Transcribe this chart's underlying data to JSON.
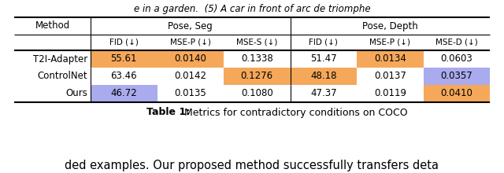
{
  "subtitle_top": "e in a garden.  (5) A car in front of arc de triomphe",
  "subtitle_bottom": "ded examples. Our proposed method successfully transfers deta",
  "title_bold": "Table 1:",
  "title_normal": " Metrics for contradictory conditions on COCO",
  "group_labels": [
    "Pose, Seg",
    "Pose, Depth"
  ],
  "col_labels": [
    "FID (↓)",
    "MSE-P (↓)",
    "MSE-S (↓)",
    "FID (↓)",
    "MSE-P (↓)",
    "MSE-D (↓)"
  ],
  "methods": [
    "T2I-Adapter",
    "ControlNet",
    "Ours"
  ],
  "data": [
    [
      "55.61",
      "0.0140",
      "0.1338",
      "51.47",
      "0.0134",
      "0.0603"
    ],
    [
      "63.46",
      "0.0142",
      "0.1276",
      "48.18",
      "0.0137",
      "0.0357"
    ],
    [
      "46.72",
      "0.0135",
      "0.1080",
      "47.37",
      "0.0119",
      "0.0410"
    ]
  ],
  "cell_colors": [
    [
      "#F5A85A",
      "#F5A85A",
      "#FFFFFF",
      "#FFFFFF",
      "#F5A85A",
      "#FFFFFF"
    ],
    [
      "#FFFFFF",
      "#FFFFFF",
      "#F5A85A",
      "#F5A85A",
      "#FFFFFF",
      "#AAAAEE"
    ],
    [
      "#AAAAEE",
      "#FFFFFF",
      "#FFFFFF",
      "#FFFFFF",
      "#FFFFFF",
      "#F5A85A"
    ]
  ],
  "white": "#FFFFFF",
  "background": "#FFFFFF",
  "font_size": 8.5
}
